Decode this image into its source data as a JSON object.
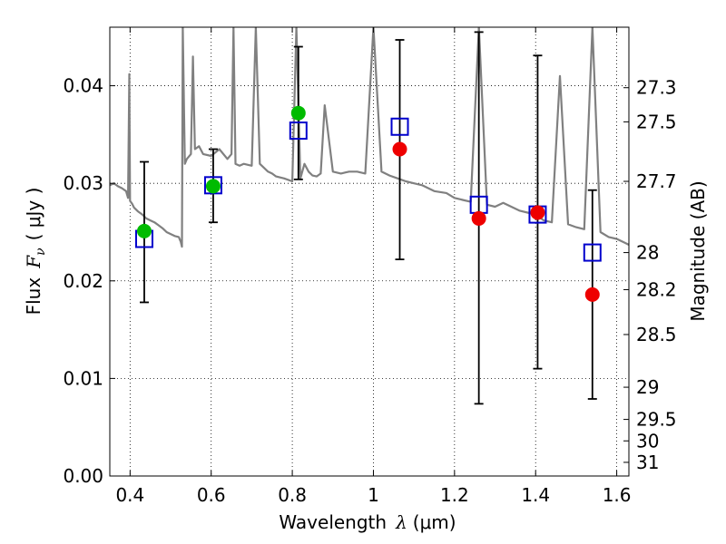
{
  "chart_data": {
    "type": "scatter",
    "xlabel": {
      "text": "Wavelength",
      "symbol": "λ",
      "unit": "(μm)"
    },
    "ylabel": {
      "text": "Flux",
      "symbol": "F",
      "subscript": "ν",
      "unit": "( μJy )"
    },
    "y2label": "Magnitude (AB)",
    "xlim": [
      0.35,
      1.63
    ],
    "ylim": [
      0.0,
      0.046
    ],
    "x_ticks": [
      0.4,
      0.6,
      0.8,
      1.0,
      1.2,
      1.4,
      1.6
    ],
    "x_tick_labels": [
      "0.4",
      "0.6",
      "0.8",
      "1",
      "1.2",
      "1.4",
      "1.6"
    ],
    "y_ticks": [
      0.0,
      0.01,
      0.02,
      0.03,
      0.04
    ],
    "y_tick_labels": [
      "0.00",
      "0.01",
      "0.02",
      "0.03",
      "0.04"
    ],
    "y2_ticks": [
      {
        "label": "27.3",
        "flux": 0.0398
      },
      {
        "label": "27.5",
        "flux": 0.0363
      },
      {
        "label": "27.7",
        "flux": 0.0302
      },
      {
        "label": "28",
        "flux": 0.0229
      },
      {
        "label": "28.2",
        "flux": 0.0191
      },
      {
        "label": "28.5",
        "flux": 0.0145
      },
      {
        "label": "29",
        "flux": 0.0091
      },
      {
        "label": "29.5",
        "flux": 0.0058
      },
      {
        "label": "30",
        "flux": 0.0036
      },
      {
        "label": "31",
        "flux": 0.0014
      }
    ],
    "grid": true,
    "colors": {
      "spectrum": "#808080",
      "model": "#0000cc",
      "green": "#00bb00",
      "red": "#ee0000",
      "errorbar": "#000000"
    },
    "series": [
      {
        "kind": "spectrum",
        "x": [
          0.35,
          0.36,
          0.37,
          0.38,
          0.39,
          0.395,
          0.398,
          0.4,
          0.405,
          0.41,
          0.42,
          0.43,
          0.44,
          0.45,
          0.46,
          0.47,
          0.48,
          0.49,
          0.5,
          0.51,
          0.52,
          0.525,
          0.528,
          0.53,
          0.535,
          0.54,
          0.55,
          0.555,
          0.56,
          0.57,
          0.58,
          0.6,
          0.62,
          0.64,
          0.65,
          0.655,
          0.66,
          0.67,
          0.68,
          0.7,
          0.71,
          0.72,
          0.74,
          0.75,
          0.76,
          0.78,
          0.8,
          0.81,
          0.82,
          0.83,
          0.84,
          0.85,
          0.86,
          0.87,
          0.88,
          0.9,
          0.92,
          0.94,
          0.96,
          0.98,
          1.0,
          1.02,
          1.04,
          1.06,
          1.08,
          1.1,
          1.12,
          1.15,
          1.18,
          1.2,
          1.22,
          1.24,
          1.26,
          1.28,
          1.3,
          1.32,
          1.34,
          1.36,
          1.38,
          1.4,
          1.42,
          1.44,
          1.46,
          1.48,
          1.5,
          1.52,
          1.54,
          1.56,
          1.58,
          1.6,
          1.62,
          1.63
        ],
        "y": [
          0.0298,
          0.03,
          0.0297,
          0.0295,
          0.0292,
          0.0285,
          0.0412,
          0.0282,
          0.0279,
          0.0275,
          0.0271,
          0.0268,
          0.0264,
          0.0262,
          0.026,
          0.0257,
          0.0254,
          0.025,
          0.0248,
          0.0246,
          0.0245,
          0.024,
          0.0235,
          0.046,
          0.032,
          0.0325,
          0.033,
          0.043,
          0.0335,
          0.0338,
          0.033,
          0.0328,
          0.0335,
          0.0325,
          0.033,
          0.046,
          0.032,
          0.0318,
          0.032,
          0.0318,
          0.046,
          0.032,
          0.0312,
          0.031,
          0.0307,
          0.0305,
          0.0302,
          0.046,
          0.0305,
          0.032,
          0.0312,
          0.0308,
          0.0307,
          0.031,
          0.038,
          0.0312,
          0.031,
          0.0312,
          0.0312,
          0.031,
          0.046,
          0.0312,
          0.0308,
          0.0305,
          0.0302,
          0.03,
          0.0298,
          0.0292,
          0.029,
          0.0285,
          0.0283,
          0.0281,
          0.046,
          0.0278,
          0.0276,
          0.028,
          0.0276,
          0.0272,
          0.027,
          0.0268,
          0.0262,
          0.026,
          0.041,
          0.0258,
          0.0255,
          0.0253,
          0.046,
          0.025,
          0.0245,
          0.0243,
          0.0239,
          0.0237
        ]
      },
      {
        "kind": "model",
        "marker": "square",
        "x": [
          0.435,
          0.605,
          0.815,
          1.065,
          1.26,
          1.405,
          1.54
        ],
        "y": [
          0.0243,
          0.0298,
          0.0354,
          0.0358,
          0.0278,
          0.0268,
          0.0229
        ]
      },
      {
        "kind": "observed-green",
        "marker": "circle",
        "x": [
          0.435,
          0.605,
          0.815
        ],
        "y": [
          0.0251,
          0.0297,
          0.0372
        ]
      },
      {
        "kind": "observed-red",
        "marker": "circle",
        "x": [
          1.065,
          1.26,
          1.405,
          1.54
        ],
        "y": [
          0.0335,
          0.0264,
          0.027,
          0.0186
        ]
      },
      {
        "kind": "errorbars",
        "x": [
          0.435,
          0.605,
          0.815,
          1.065,
          1.26,
          1.405,
          1.54
        ],
        "low": [
          0.0178,
          0.026,
          0.0304,
          0.0222,
          0.0074,
          0.011,
          0.0079
        ],
        "high": [
          0.0322,
          0.0335,
          0.044,
          0.0447,
          0.0455,
          0.0431,
          0.0293
        ]
      }
    ]
  }
}
